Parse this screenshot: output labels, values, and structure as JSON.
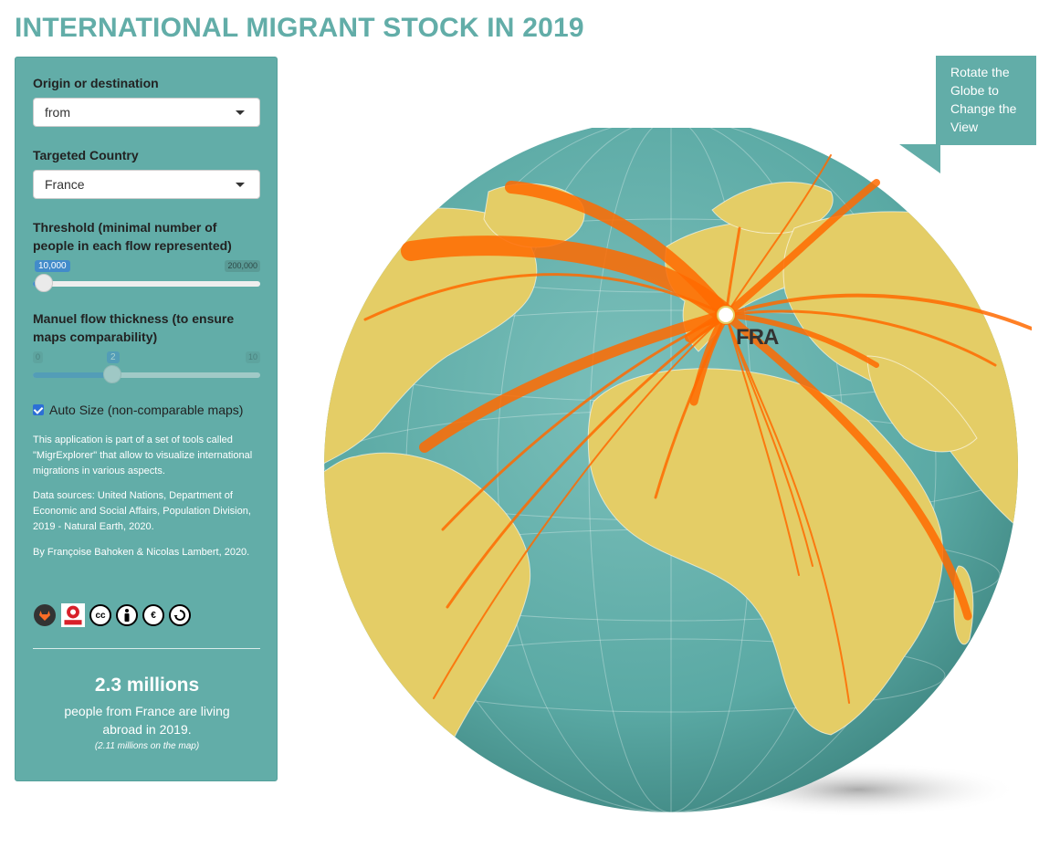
{
  "header": {
    "title": "INTERNATIONAL MIGRANT STOCK IN 2019"
  },
  "controls": {
    "origin": {
      "label": "Origin or destination",
      "value": "from"
    },
    "country": {
      "label": "Targeted Country",
      "value": "France"
    },
    "threshold": {
      "label": "Threshold (minimal number of people in each flow represented)",
      "min_label": "10,000",
      "max_label": "200,000",
      "value_fraction": 0.0
    },
    "thickness": {
      "label": "Manuel flow thickness (to ensure maps comparability)",
      "min_label": "0",
      "max_label": "10",
      "value_label": "2",
      "value": 2,
      "max": 10
    },
    "auto_size": {
      "label": "Auto Size (non-comparable maps)",
      "checked": true
    }
  },
  "info": {
    "about": "This application is part of a set of tools called \"MigrExplorer\" that allow to visualize international migrations in various aspects.",
    "sources": "Data sources: United Nations, Department of Economic and Social Affairs, Population Division, 2019 - Natural Earth, 2020.",
    "authors": "By Françoise Bahoken & Nicolas Lambert, 2020."
  },
  "logos": [
    "gitlab-icon",
    "riate-logo",
    "cc-icon",
    "by-icon",
    "nc-icon",
    "sa-icon"
  ],
  "stats": {
    "headline": "2.3 millions",
    "text": "people from France are living abroad in 2019.",
    "note": "(2.11 millions on the map)"
  },
  "map": {
    "label": "FRA",
    "ocean_color": "#5aa9a4",
    "land_color": "#e4cd66",
    "flow_color": "#ff6a00"
  },
  "tooltip": {
    "text": "Rotate the Globe to Change the View"
  },
  "colors": {
    "accent": "#62ada8",
    "slider": "#428bca"
  }
}
